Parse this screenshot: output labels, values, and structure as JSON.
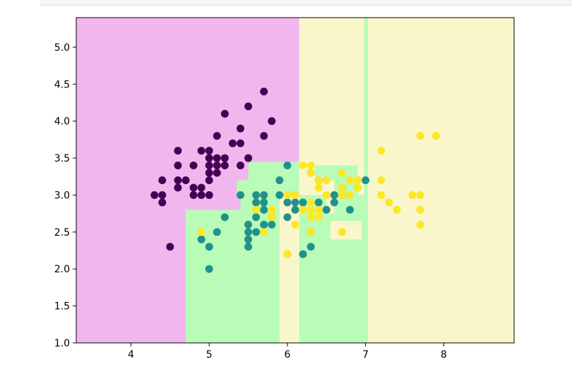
{
  "chart_data": {
    "type": "scatter",
    "title": "",
    "xlabel": "",
    "ylabel": "",
    "xlim": [
      3.3,
      8.9
    ],
    "ylim": [
      1.0,
      5.4
    ],
    "x_ticks": [
      "4",
      "5",
      "6",
      "7",
      "8"
    ],
    "y_ticks": [
      "1.0",
      "1.5",
      "2.0",
      "2.5",
      "3.0",
      "3.5",
      "4.0",
      "4.5",
      "5.0"
    ],
    "grid": false,
    "colors": {
      "region_class0": "#f2b6ef",
      "region_class1": "#b8fcb8",
      "region_class2": "#faf6cb",
      "point_class0": "#440154",
      "point_class1": "#21918c",
      "point_class2": "#fde725"
    },
    "decision_regions": [
      {
        "class": 0,
        "x0": 3.3,
        "x1": 8.9,
        "y0": 1.0,
        "y1": 5.4
      },
      {
        "class": 1,
        "x0": 4.7,
        "x1": 5.4,
        "y0": 1.0,
        "y1": 2.8
      },
      {
        "class": 1,
        "x0": 5.4,
        "x1": 6.15,
        "y0": 1.0,
        "y1": 3.0
      },
      {
        "class": 1,
        "x0": 5.35,
        "x1": 6.15,
        "y0": 3.0,
        "y1": 3.2
      },
      {
        "class": 1,
        "x0": 5.5,
        "x1": 6.15,
        "y0": 3.2,
        "y1": 3.45
      },
      {
        "class": 2,
        "x0": 6.15,
        "x1": 8.9,
        "y0": 1.0,
        "y1": 5.4
      },
      {
        "class": 1,
        "x0": 6.15,
        "x1": 7.03,
        "y0": 1.0,
        "y1": 2.75
      },
      {
        "class": 1,
        "x0": 6.15,
        "x1": 6.5,
        "y0": 2.75,
        "y1": 3.0
      },
      {
        "class": 1,
        "x0": 6.6,
        "x1": 7.0,
        "y0": 2.75,
        "y1": 3.0
      },
      {
        "class": 1,
        "x0": 6.45,
        "x1": 6.9,
        "y0": 3.0,
        "y1": 3.4
      },
      {
        "class": 1,
        "x0": 6.35,
        "x1": 6.45,
        "y0": 3.25,
        "y1": 3.4
      },
      {
        "class": 1,
        "x0": 6.98,
        "x1": 7.03,
        "y0": 2.75,
        "y1": 5.4
      },
      {
        "class": 2,
        "x0": 5.9,
        "x1": 6.15,
        "y0": 1.0,
        "y1": 3.0
      },
      {
        "class": 2,
        "x0": 6.55,
        "x1": 6.95,
        "y0": 2.4,
        "y1": 2.65
      },
      {
        "class": 2,
        "x0": 6.4,
        "x1": 6.6,
        "y0": 3.0,
        "y1": 3.2
      }
    ],
    "series": [
      {
        "class": 0,
        "points": [
          [
            4.3,
            3.0
          ],
          [
            4.4,
            2.9
          ],
          [
            4.4,
            3.0
          ],
          [
            4.4,
            3.2
          ],
          [
            4.5,
            2.3
          ],
          [
            4.6,
            3.1
          ],
          [
            4.6,
            3.2
          ],
          [
            4.6,
            3.4
          ],
          [
            4.6,
            3.6
          ],
          [
            4.7,
            3.2
          ],
          [
            4.8,
            3.0
          ],
          [
            4.8,
            3.1
          ],
          [
            4.8,
            3.4
          ],
          [
            4.9,
            3.0
          ],
          [
            4.9,
            3.1
          ],
          [
            4.9,
            3.6
          ],
          [
            5.0,
            3.0
          ],
          [
            5.0,
            3.2
          ],
          [
            5.0,
            3.3
          ],
          [
            5.0,
            3.4
          ],
          [
            5.0,
            3.5
          ],
          [
            5.0,
            3.6
          ],
          [
            5.1,
            3.3
          ],
          [
            5.1,
            3.4
          ],
          [
            5.1,
            3.5
          ],
          [
            5.1,
            3.8
          ],
          [
            5.2,
            3.4
          ],
          [
            5.2,
            3.5
          ],
          [
            5.2,
            4.1
          ],
          [
            5.3,
            3.7
          ],
          [
            5.4,
            3.4
          ],
          [
            5.4,
            3.7
          ],
          [
            5.4,
            3.9
          ],
          [
            5.5,
            3.5
          ],
          [
            5.5,
            4.2
          ],
          [
            5.7,
            3.8
          ],
          [
            5.7,
            4.4
          ],
          [
            5.8,
            4.0
          ]
        ]
      },
      {
        "class": 1,
        "points": [
          [
            4.9,
            2.4
          ],
          [
            5.0,
            2.0
          ],
          [
            5.0,
            2.3
          ],
          [
            5.1,
            2.5
          ],
          [
            5.2,
            2.7
          ],
          [
            5.4,
            3.0
          ],
          [
            5.5,
            2.3
          ],
          [
            5.5,
            2.4
          ],
          [
            5.5,
            2.5
          ],
          [
            5.5,
            2.6
          ],
          [
            5.6,
            2.5
          ],
          [
            5.6,
            2.7
          ],
          [
            5.6,
            2.9
          ],
          [
            5.6,
            3.0
          ],
          [
            5.7,
            2.6
          ],
          [
            5.7,
            2.8
          ],
          [
            5.7,
            2.9
          ],
          [
            5.7,
            3.0
          ],
          [
            5.8,
            2.6
          ],
          [
            5.8,
            2.7
          ],
          [
            5.9,
            3.0
          ],
          [
            5.9,
            3.2
          ],
          [
            6.0,
            2.2
          ],
          [
            6.0,
            2.7
          ],
          [
            6.0,
            2.9
          ],
          [
            6.0,
            3.4
          ],
          [
            6.1,
            2.8
          ],
          [
            6.1,
            2.9
          ],
          [
            6.1,
            3.0
          ],
          [
            6.2,
            2.2
          ],
          [
            6.2,
            2.9
          ],
          [
            6.3,
            2.3
          ],
          [
            6.3,
            2.5
          ],
          [
            6.3,
            3.3
          ],
          [
            6.4,
            2.9
          ],
          [
            6.4,
            3.2
          ],
          [
            6.5,
            2.8
          ],
          [
            6.6,
            2.9
          ],
          [
            6.6,
            3.0
          ],
          [
            6.7,
            3.0
          ],
          [
            6.7,
            3.1
          ],
          [
            6.8,
            2.8
          ],
          [
            6.9,
            3.1
          ],
          [
            7.0,
            3.2
          ]
        ]
      },
      {
        "class": 2,
        "points": [
          [
            4.9,
            2.5
          ],
          [
            5.6,
            2.8
          ],
          [
            5.7,
            2.5
          ],
          [
            5.8,
            2.7
          ],
          [
            5.8,
            2.8
          ],
          [
            6.0,
            2.2
          ],
          [
            6.0,
            3.0
          ],
          [
            6.1,
            2.6
          ],
          [
            6.1,
            3.0
          ],
          [
            6.2,
            2.8
          ],
          [
            6.2,
            3.4
          ],
          [
            6.3,
            2.5
          ],
          [
            6.3,
            2.7
          ],
          [
            6.3,
            2.8
          ],
          [
            6.3,
            2.9
          ],
          [
            6.3,
            3.3
          ],
          [
            6.3,
            3.4
          ],
          [
            6.4,
            2.7
          ],
          [
            6.4,
            2.8
          ],
          [
            6.4,
            3.1
          ],
          [
            6.4,
            3.2
          ],
          [
            6.5,
            3.0
          ],
          [
            6.5,
            3.2
          ],
          [
            6.7,
            2.5
          ],
          [
            6.7,
            3.0
          ],
          [
            6.7,
            3.1
          ],
          [
            6.7,
            3.3
          ],
          [
            6.8,
            3.0
          ],
          [
            6.8,
            3.2
          ],
          [
            6.9,
            3.1
          ],
          [
            6.9,
            3.2
          ],
          [
            7.2,
            3.0
          ],
          [
            7.2,
            3.2
          ],
          [
            7.2,
            3.6
          ],
          [
            7.3,
            2.9
          ],
          [
            7.4,
            2.8
          ],
          [
            7.6,
            3.0
          ],
          [
            7.7,
            2.6
          ],
          [
            7.7,
            2.8
          ],
          [
            7.7,
            3.0
          ],
          [
            7.7,
            3.8
          ],
          [
            7.9,
            3.8
          ]
        ]
      }
    ]
  }
}
